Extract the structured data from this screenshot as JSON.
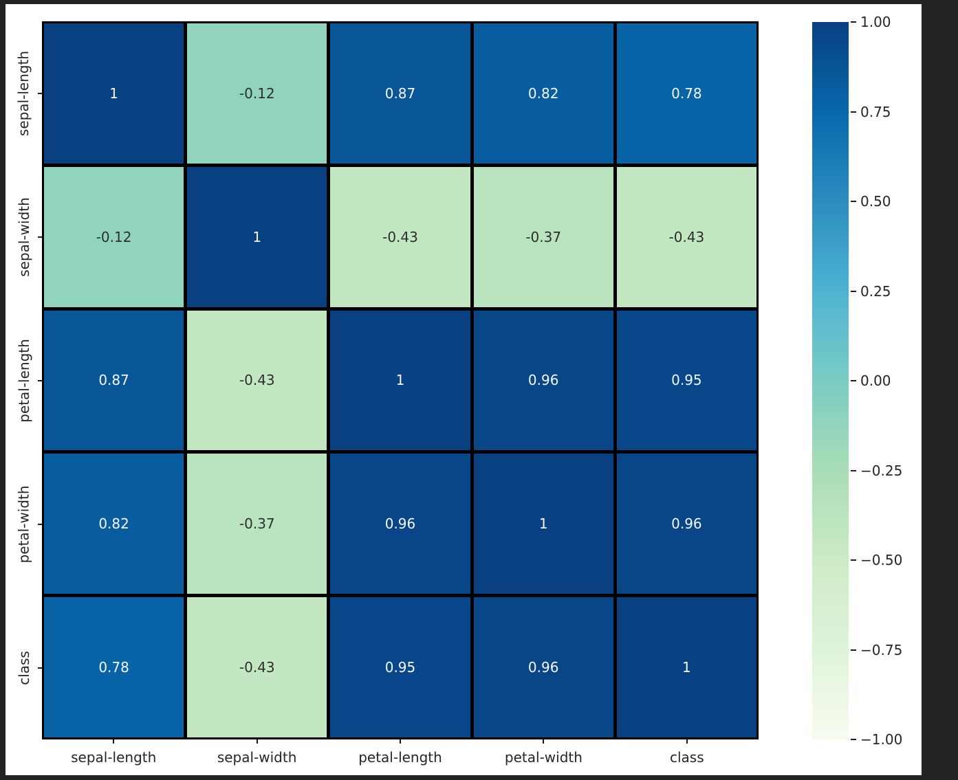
{
  "page_background": "#232323",
  "figure_background": "#ffffff",
  "chart_data": {
    "type": "heatmap",
    "title": "",
    "xlabel": "",
    "ylabel": "",
    "categories": [
      "sepal-length",
      "sepal-width",
      "petal-length",
      "petal-width",
      "class"
    ],
    "matrix": [
      [
        1.0,
        -0.12,
        0.87,
        0.82,
        0.78
      ],
      [
        -0.12,
        1.0,
        -0.43,
        -0.37,
        -0.43
      ],
      [
        0.87,
        -0.43,
        1.0,
        0.96,
        0.95
      ],
      [
        0.82,
        -0.37,
        0.96,
        1.0,
        0.96
      ],
      [
        0.78,
        -0.43,
        0.95,
        0.96,
        1.0
      ]
    ],
    "annotations": [
      [
        "1",
        "-0.12",
        "0.87",
        "0.82",
        "0.78"
      ],
      [
        "-0.12",
        "1",
        "-0.43",
        "-0.37",
        "-0.43"
      ],
      [
        "0.87",
        "-0.43",
        "1",
        "0.96",
        "0.95"
      ],
      [
        "0.82",
        "-0.37",
        "0.96",
        "1",
        "0.96"
      ],
      [
        "0.78",
        "-0.43",
        "0.95",
        "0.96",
        "1"
      ]
    ],
    "vmin": -1,
    "vmax": 1,
    "colormap": {
      "name": "GnBu",
      "stops": [
        "#f7fcf0",
        "#e0f3db",
        "#ccebc5",
        "#a8ddb5",
        "#7bccc4",
        "#4eb3d3",
        "#2b8cbe",
        "#0868ac",
        "#084081"
      ]
    },
    "colorbar": {
      "position": "right",
      "tick_labels": [
        "1.00",
        "0.75",
        "0.50",
        "0.25",
        "0.00",
        "−0.25",
        "−0.50",
        "−0.75",
        "−1.00"
      ],
      "tick_values": [
        1.0,
        0.75,
        0.5,
        0.25,
        0.0,
        -0.25,
        -0.5,
        -0.75,
        -1.0
      ]
    },
    "grid_line_color": "#000000",
    "tick_mark_color": "#1a1a1a",
    "tick_label_color": "#262626",
    "annotation_color_dark": "#2e2e2e",
    "annotation_color_light": "#f5f7fa",
    "legend": "none",
    "grid": "cell-borders"
  }
}
